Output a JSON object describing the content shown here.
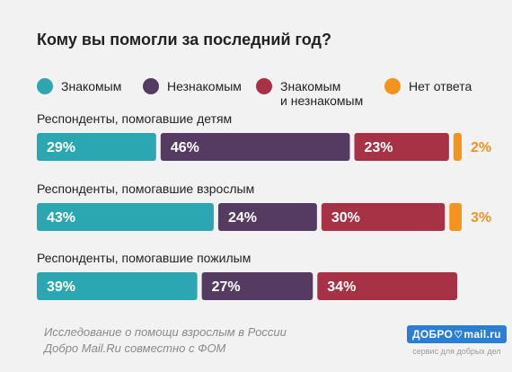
{
  "title": "Кому вы помогли за последний год?",
  "legend": [
    {
      "label": "Знакомым",
      "color": "#2aa7b0"
    },
    {
      "label": "Незнакомым",
      "color": "#553a61"
    },
    {
      "label": "Знакомым\nи незнакомым",
      "color": "#a73145"
    },
    {
      "label": "Нет ответа",
      "color": "#f5931f"
    }
  ],
  "chart_data": {
    "type": "bar",
    "orientation": "horizontal",
    "stacked": true,
    "title": "Кому вы помогли за последний год?",
    "categories": [
      "Респонденты, помогавшие детям",
      "Респонденты, помогавшие взрослым",
      "Респонденты, помогавшие пожилым"
    ],
    "series": [
      {
        "name": "Знакомым",
        "color": "#2aa7b0",
        "values": [
          29,
          43,
          39
        ],
        "labels": [
          "29%",
          "43%",
          "39%"
        ]
      },
      {
        "name": "Незнакомым",
        "color": "#553a61",
        "values": [
          46,
          24,
          27
        ],
        "labels": [
          "46%",
          "24%",
          "27%"
        ]
      },
      {
        "name": "Знакомым и незнакомым",
        "color": "#a73145",
        "values": [
          23,
          30,
          34
        ],
        "labels": [
          "23%",
          "30%",
          "34%"
        ]
      },
      {
        "name": "Нет ответа",
        "color": "#f5931f",
        "values": [
          2,
          3,
          0
        ],
        "labels": [
          "2%",
          "3%",
          ""
        ]
      }
    ],
    "legend_position": "top",
    "grid": false
  },
  "footer": {
    "line1": "Исследование о помощи взрослым в России",
    "line2": "Добро Mail.Ru совместно с ФОМ"
  },
  "brand": {
    "left": "ДОБРО",
    "right": "mail.ru",
    "tagline": "сервис для добрых дел",
    "color": "#2a7fd4"
  }
}
